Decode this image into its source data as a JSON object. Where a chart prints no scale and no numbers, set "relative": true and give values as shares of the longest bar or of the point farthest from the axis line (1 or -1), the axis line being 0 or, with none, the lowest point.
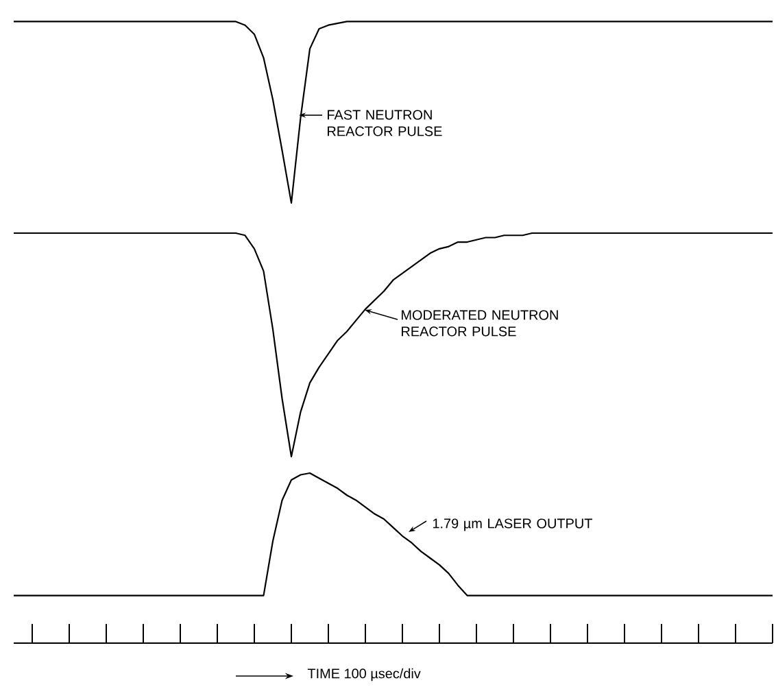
{
  "chart_data": [
    {
      "type": "line",
      "relative": true,
      "categories": [
        null,
        null,
        null,
        null,
        null,
        null,
        null,
        null,
        null,
        null,
        null,
        null,
        null,
        null,
        null,
        null,
        null,
        null,
        null,
        null,
        null,
        null,
        null,
        null,
        null,
        null,
        null,
        null,
        null,
        null,
        null,
        null,
        null,
        null,
        null,
        null,
        null,
        null,
        null,
        null,
        null,
        null,
        null,
        null,
        null,
        null,
        null,
        null,
        null,
        null,
        null,
        null,
        null,
        null,
        null,
        null,
        null,
        null,
        null,
        null,
        null,
        null,
        null,
        null,
        null,
        null,
        null,
        null,
        null,
        null,
        null,
        null,
        null,
        null,
        null,
        null,
        null,
        null,
        null,
        null,
        null,
        null,
        null
      ],
      "series": [
        {
          "color": "#000000",
          "values": [
            1,
            1,
            1,
            1,
            1,
            1,
            1,
            1,
            1,
            1,
            1,
            1,
            1,
            1,
            1,
            1,
            1,
            1,
            1,
            1,
            1,
            1,
            1,
            1,
            1,
            0.98,
            0.93,
            0.8,
            0.57,
            0.29,
            0,
            0.47,
            0.85,
            0.96,
            0.98,
            0.99,
            1,
            1,
            1,
            1,
            1,
            1,
            1,
            1,
            1,
            1,
            1,
            1,
            1,
            1,
            1,
            1,
            1,
            1,
            1,
            1,
            1,
            1,
            1,
            1,
            1,
            1,
            1,
            1,
            1,
            1,
            1,
            1,
            1,
            1,
            1,
            1,
            1,
            1,
            1,
            1,
            1,
            1,
            1,
            1,
            1,
            1,
            1
          ]
        }
      ],
      "annotations": [
        "FAST NEUTRON REACTOR PULSE"
      ]
    },
    {
      "type": "line",
      "relative": true,
      "categories": [
        null,
        null,
        null,
        null,
        null,
        null,
        null,
        null,
        null,
        null,
        null,
        null,
        null,
        null,
        null,
        null,
        null,
        null,
        null,
        null,
        null,
        null,
        null,
        null,
        null,
        null,
        null,
        null,
        null,
        null,
        null,
        null,
        null,
        null,
        null,
        null,
        null,
        null,
        null,
        null,
        null,
        null,
        null,
        null,
        null,
        null,
        null,
        null,
        null,
        null,
        null,
        null,
        null,
        null,
        null,
        null,
        null,
        null,
        null,
        null,
        null,
        null,
        null,
        null,
        null,
        null,
        null,
        null,
        null,
        null,
        null,
        null,
        null,
        null,
        null,
        null,
        null,
        null,
        null,
        null,
        null,
        null,
        null
      ],
      "series": [
        {
          "color": "#000000",
          "values": [
            1,
            1,
            1,
            1,
            1,
            1,
            1,
            1,
            1,
            1,
            1,
            1,
            1,
            1,
            1,
            1,
            1,
            1,
            1,
            1,
            1,
            1,
            1,
            1,
            1,
            0.99,
            0.93,
            0.83,
            0.57,
            0.26,
            0,
            0.2,
            0.33,
            0.4,
            0.46,
            0.52,
            0.56,
            0.61,
            0.66,
            0.7,
            0.74,
            0.79,
            0.82,
            0.85,
            0.88,
            0.91,
            0.93,
            0.94,
            0.96,
            0.96,
            0.97,
            0.98,
            0.98,
            0.99,
            0.99,
            0.99,
            1,
            1,
            1,
            1,
            1,
            1,
            1,
            1,
            1,
            1,
            1,
            1,
            1,
            1,
            1,
            1,
            1,
            1,
            1,
            1,
            1,
            1,
            1,
            1,
            1,
            1,
            1
          ]
        }
      ],
      "annotations": [
        "MODERATED NEUTRON REACTOR PULSE"
      ]
    },
    {
      "type": "line",
      "relative": true,
      "categories": [
        null,
        null,
        null,
        null,
        null,
        null,
        null,
        null,
        null,
        null,
        null,
        null,
        null,
        null,
        null,
        null,
        null,
        null,
        null,
        null,
        null,
        null,
        null,
        null,
        null,
        null,
        null,
        null,
        null,
        null,
        null,
        null,
        null,
        null,
        null,
        null,
        null,
        null,
        null,
        null,
        null,
        null,
        null,
        null,
        null,
        null,
        null,
        null,
        null,
        null,
        null,
        null,
        null,
        null,
        null,
        null,
        null,
        null,
        null,
        null,
        null,
        null,
        null,
        null,
        null,
        null,
        null,
        null,
        null,
        null,
        null,
        null,
        null,
        null,
        null,
        null,
        null,
        null,
        null,
        null,
        null,
        null,
        null
      ],
      "series": [
        {
          "color": "#000000",
          "values": [
            0.28,
            0.28,
            0.28,
            0.28,
            0.28,
            0.28,
            0.28,
            0.28,
            0.28,
            0.28,
            0.28,
            0.28,
            0.28,
            0.28,
            0.28,
            0.28,
            0.28,
            0.28,
            0.28,
            0.28,
            0.28,
            0.28,
            0.28,
            0.28,
            0.28,
            0.28,
            0.28,
            0.28,
            0.6,
            0.84,
            0.96,
            0.99,
            1,
            0.97,
            0.94,
            0.91,
            0.87,
            0.84,
            0.8,
            0.76,
            0.73,
            0.68,
            0.63,
            0.59,
            0.54,
            0.5,
            0.46,
            0.41,
            0.34,
            0.28,
            0.28,
            0.28,
            0.28,
            0.28,
            0.28,
            0.28,
            0.28,
            0.28,
            0.28,
            0.28,
            0.28,
            0.28,
            0.28,
            0.28,
            0.28,
            0.28,
            0.28,
            0.28,
            0.28,
            0.28,
            0.28,
            0.28,
            0.28,
            0.28,
            0.28,
            0.28,
            0.28,
            0.28,
            0.28,
            0.28,
            0.28,
            0.28,
            0.28
          ]
        }
      ],
      "xlabel": "TIME 100 µsec/div",
      "annotations": [
        "1.79 µm LASER OUTPUT"
      ]
    }
  ]
}
